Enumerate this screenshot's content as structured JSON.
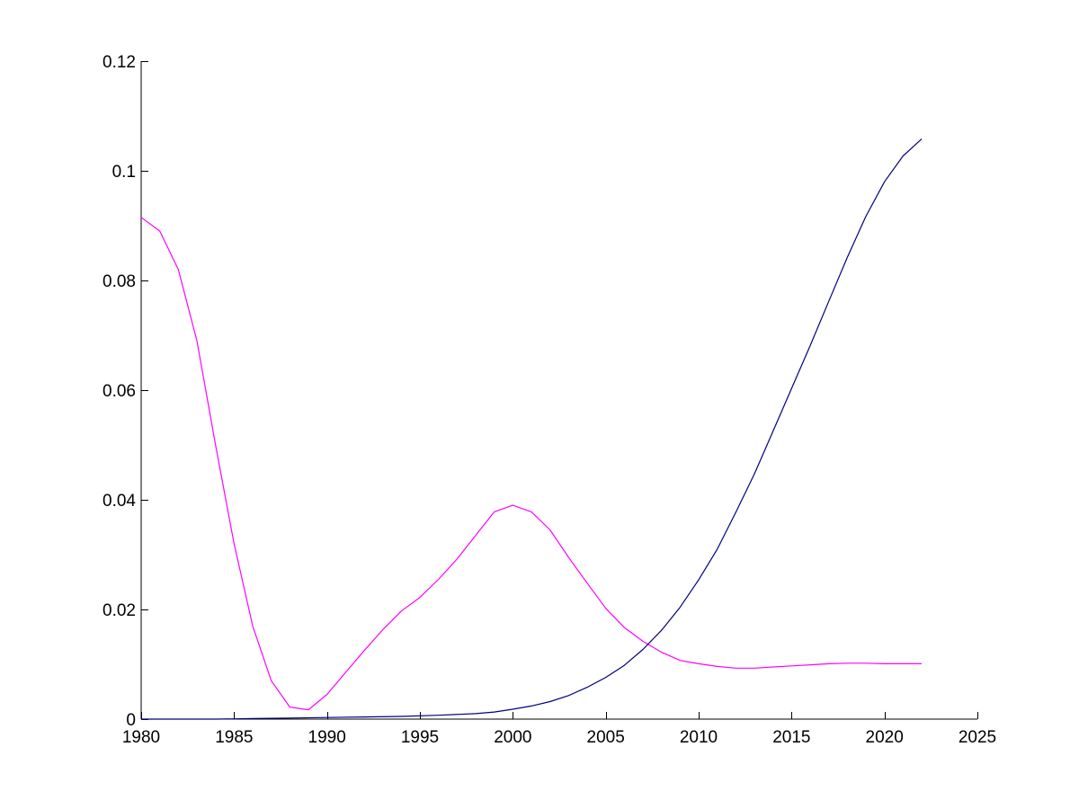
{
  "chart_data": {
    "type": "line",
    "title": "",
    "xlabel": "",
    "ylabel": "",
    "xlim": [
      1980,
      2025
    ],
    "ylim": [
      0,
      0.12
    ],
    "xticks": [
      "1980",
      "1985",
      "1990",
      "1995",
      "2000",
      "2005",
      "2010",
      "2015",
      "2020",
      "2025"
    ],
    "yticks": [
      "0",
      "0.02",
      "0.04",
      "0.06",
      "0.08",
      "0.1",
      "0.12"
    ],
    "grid": false,
    "legend": "none",
    "series": [
      {
        "color": "#ff00ff",
        "x": [
          1980,
          1981,
          1982,
          1983,
          1984,
          1985,
          1986,
          1987,
          1988,
          1989,
          1990,
          1991,
          1992,
          1993,
          1994,
          1995,
          1996,
          1997,
          1998,
          1999,
          2000,
          2001,
          2002,
          2003,
          2004,
          2005,
          2006,
          2007,
          2008,
          2009,
          2010,
          2011,
          2012,
          2013,
          2014,
          2015,
          2016,
          2017,
          2018,
          2019,
          2020,
          2021,
          2022
        ],
        "y": [
          0.0915,
          0.089,
          0.082,
          0.069,
          0.05,
          0.032,
          0.017,
          0.007,
          0.0022,
          0.0017,
          0.0045,
          0.0085,
          0.0125,
          0.0163,
          0.0197,
          0.0222,
          0.0255,
          0.0292,
          0.0335,
          0.0378,
          0.039,
          0.0378,
          0.0345,
          0.0295,
          0.0248,
          0.0202,
          0.0167,
          0.0142,
          0.0122,
          0.0107,
          0.0101,
          0.0096,
          0.0093,
          0.0093,
          0.0095,
          0.0097,
          0.0099,
          0.0101,
          0.0102,
          0.0102,
          0.0101,
          0.0101,
          0.0101
        ]
      },
      {
        "color": "#00007f",
        "x": [
          1980,
          1982,
          1984,
          1986,
          1988,
          1990,
          1992,
          1994,
          1996,
          1998,
          1999,
          2000,
          2001,
          2002,
          2003,
          2004,
          2005,
          2006,
          2007,
          2008,
          2009,
          2010,
          2011,
          2012,
          2013,
          2014,
          2015,
          2016,
          2017,
          2018,
          2019,
          2020,
          2021,
          2022
        ],
        "y": [
          0.0,
          0.0,
          0.0,
          0.0001,
          0.0002,
          0.0003,
          0.0004,
          0.0005,
          0.0007,
          0.001,
          0.0013,
          0.0018,
          0.0024,
          0.0032,
          0.0043,
          0.0058,
          0.0076,
          0.0098,
          0.0127,
          0.0162,
          0.0204,
          0.0254,
          0.031,
          0.0377,
          0.0447,
          0.0525,
          0.0603,
          0.0681,
          0.0762,
          0.0842,
          0.0917,
          0.098,
          0.1027,
          0.1058
        ]
      }
    ]
  }
}
